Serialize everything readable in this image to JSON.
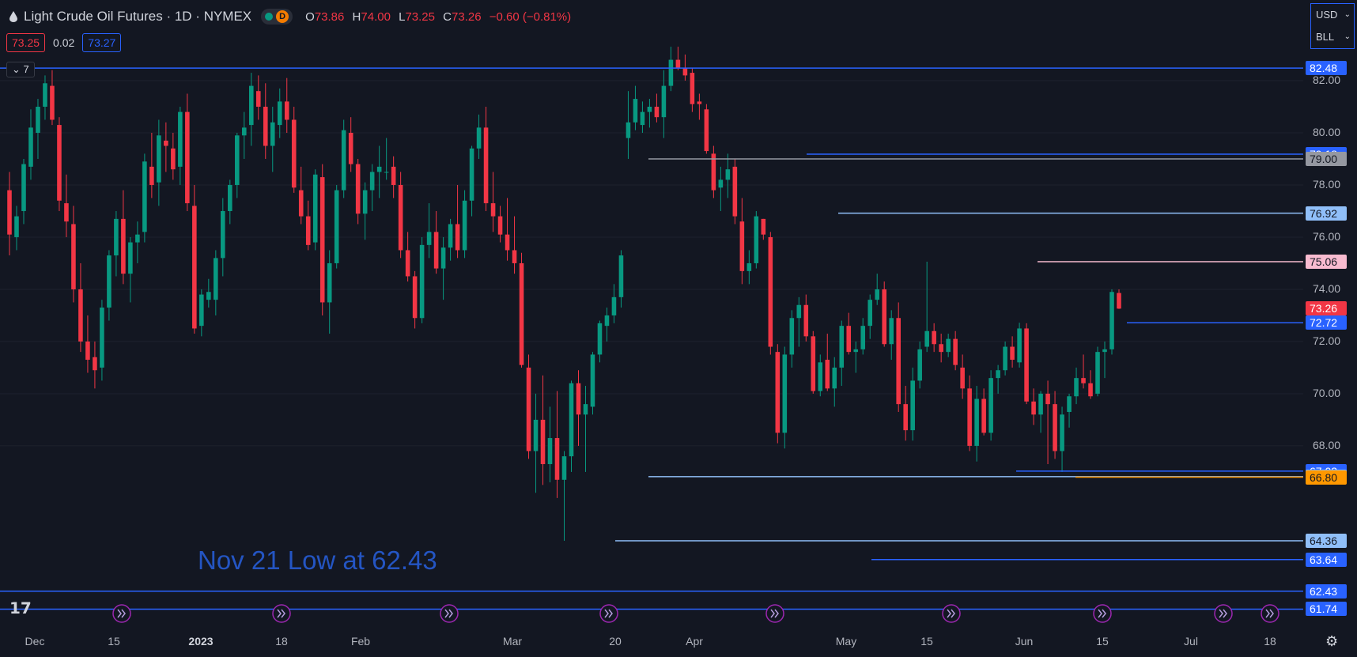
{
  "header": {
    "symbol": "Light Crude Oil Futures · 1D · NYMEX",
    "interval_badge": "D",
    "ohlc": {
      "o_label": "O",
      "o": "73.86",
      "h_label": "H",
      "h": "74.00",
      "l_label": "L",
      "l": "73.25",
      "c_label": "C",
      "c": "73.26",
      "change": "−0.60 (−0.81%)"
    }
  },
  "trade": {
    "bid": "73.25",
    "spread": "0.02",
    "ask": "73.27"
  },
  "indicators_toggle": "7",
  "currency": {
    "currency": "USD",
    "unit": "BLL"
  },
  "annotation": "Nov 21 Low at 62.43",
  "colors": {
    "up": "#089981",
    "down": "#f23645",
    "background": "#131722",
    "grid": "#1e222d",
    "blue": "#2962ff"
  },
  "chart_data": {
    "type": "candlestick",
    "title": "Light Crude Oil Futures · 1D · NYMEX",
    "y_ticks": [
      "82.00",
      "80.00",
      "78.00",
      "76.00",
      "74.00",
      "72.00",
      "70.00",
      "68.00"
    ],
    "x_ticks": [
      {
        "label": "Dec",
        "bold": false
      },
      {
        "label": "15",
        "bold": false
      },
      {
        "label": "2023",
        "bold": true
      },
      {
        "label": "18",
        "bold": false
      },
      {
        "label": "Feb",
        "bold": false
      },
      {
        "label": "Mar",
        "bold": false
      },
      {
        "label": "20",
        "bold": false
      },
      {
        "label": "Apr",
        "bold": false
      },
      {
        "label": "May",
        "bold": false
      },
      {
        "label": "15",
        "bold": false
      },
      {
        "label": "Jun",
        "bold": false
      },
      {
        "label": "15",
        "bold": false
      },
      {
        "label": "Jul",
        "bold": false
      },
      {
        "label": "18",
        "bold": false
      }
    ],
    "ylim": [
      61.3,
      84.0
    ],
    "level_lines": [
      {
        "value": 82.48,
        "label": "82.48",
        "style": "blue"
      },
      {
        "value": 79.18,
        "label": "79.18",
        "style": "blue"
      },
      {
        "value": 79.0,
        "label": "79.00",
        "style": "gray"
      },
      {
        "value": 76.92,
        "label": "76.92",
        "style": "lightblue"
      },
      {
        "value": 75.06,
        "label": "75.06",
        "style": "pink"
      },
      {
        "value": 73.26,
        "label": "73.26",
        "style": "red"
      },
      {
        "value": 72.72,
        "label": "72.72",
        "style": "blue"
      },
      {
        "value": 67.03,
        "label": "67.03",
        "style": "blue"
      },
      {
        "value": 66.82,
        "label": "66.82",
        "style": "lightblue"
      },
      {
        "value": 66.8,
        "label": "66.80",
        "style": "orange"
      },
      {
        "value": 64.36,
        "label": "64.36",
        "style": "lightblue"
      },
      {
        "value": 63.64,
        "label": "63.64",
        "style": "blue"
      },
      {
        "value": 62.43,
        "label": "62.43",
        "style": "blue"
      },
      {
        "value": 61.74,
        "label": "61.74",
        "style": "blue"
      }
    ],
    "candles": [
      [
        77.8,
        78.5,
        75.3,
        76.1
      ],
      [
        76.0,
        77.2,
        75.5,
        76.8
      ],
      [
        77.0,
        79.0,
        76.5,
        78.8
      ],
      [
        78.7,
        80.9,
        78.2,
        80.2
      ],
      [
        80.0,
        81.3,
        79.0,
        81.0
      ],
      [
        81.0,
        82.2,
        80.5,
        81.9
      ],
      [
        81.8,
        82.4,
        80.3,
        80.5
      ],
      [
        80.3,
        80.6,
        77.0,
        77.4
      ],
      [
        77.3,
        78.4,
        76.0,
        76.6
      ],
      [
        76.5,
        77.2,
        73.5,
        74.0
      ],
      [
        74.0,
        75.0,
        71.6,
        72.0
      ],
      [
        72.0,
        73.0,
        70.8,
        71.3
      ],
      [
        71.4,
        72.0,
        70.2,
        70.9
      ],
      [
        71.0,
        73.6,
        70.5,
        73.3
      ],
      [
        73.3,
        75.5,
        72.8,
        75.3
      ],
      [
        75.3,
        77.0,
        74.5,
        76.7
      ],
      [
        76.7,
        77.8,
        74.2,
        74.6
      ],
      [
        74.6,
        76.0,
        73.5,
        75.8
      ],
      [
        75.8,
        76.6,
        75.0,
        76.1
      ],
      [
        76.2,
        79.2,
        75.8,
        78.9
      ],
      [
        78.7,
        80.0,
        77.5,
        78.0
      ],
      [
        78.1,
        80.5,
        77.2,
        79.9
      ],
      [
        79.7,
        80.4,
        78.5,
        79.5
      ],
      [
        79.4,
        80.0,
        78.2,
        78.6
      ],
      [
        78.7,
        81.0,
        78.0,
        80.8
      ],
      [
        80.8,
        81.5,
        77.0,
        77.3
      ],
      [
        77.2,
        78.0,
        72.3,
        72.5
      ],
      [
        72.6,
        74.0,
        72.2,
        73.8
      ],
      [
        73.6,
        74.4,
        73.3,
        73.9
      ],
      [
        73.6,
        75.5,
        73.0,
        75.2
      ],
      [
        75.2,
        77.5,
        74.5,
        77.0
      ],
      [
        77.0,
        78.2,
        76.5,
        78.0
      ],
      [
        78.0,
        80.0,
        77.5,
        79.9
      ],
      [
        79.9,
        80.8,
        79.0,
        80.2
      ],
      [
        80.3,
        82.3,
        79.5,
        81.8
      ],
      [
        81.6,
        82.2,
        80.5,
        81.0
      ],
      [
        81.0,
        81.9,
        79.0,
        79.5
      ],
      [
        79.5,
        81.0,
        78.5,
        80.4
      ],
      [
        80.3,
        81.7,
        79.8,
        81.2
      ],
      [
        81.2,
        82.1,
        80.0,
        80.5
      ],
      [
        80.5,
        81.0,
        77.7,
        77.9
      ],
      [
        77.8,
        78.7,
        76.5,
        76.8
      ],
      [
        76.8,
        77.4,
        75.5,
        75.7
      ],
      [
        75.8,
        78.6,
        75.5,
        78.4
      ],
      [
        78.3,
        78.8,
        73.0,
        73.5
      ],
      [
        73.5,
        75.5,
        72.3,
        75.0
      ],
      [
        75.0,
        78.0,
        74.8,
        77.8
      ],
      [
        77.8,
        80.5,
        77.5,
        80.1
      ],
      [
        80.0,
        80.6,
        78.5,
        78.8
      ],
      [
        78.8,
        79.0,
        76.5,
        76.9
      ],
      [
        76.9,
        78.1,
        75.9,
        77.8
      ],
      [
        77.8,
        78.8,
        77.0,
        78.5
      ],
      [
        78.5,
        79.5,
        77.5,
        78.7
      ],
      [
        78.5,
        79.8,
        78.2,
        78.5
      ],
      [
        78.7,
        79.1,
        77.5,
        78.0
      ],
      [
        78.0,
        78.5,
        75.2,
        75.5
      ],
      [
        75.5,
        76.2,
        74.3,
        74.5
      ],
      [
        74.5,
        74.7,
        72.5,
        72.9
      ],
      [
        72.9,
        76.0,
        72.7,
        75.7
      ],
      [
        75.7,
        77.3,
        75.2,
        76.2
      ],
      [
        76.2,
        77.0,
        74.6,
        74.8
      ],
      [
        74.8,
        76.0,
        73.6,
        75.6
      ],
      [
        75.6,
        76.7,
        75.1,
        76.5
      ],
      [
        76.5,
        78.0,
        75.2,
        75.5
      ],
      [
        75.5,
        77.8,
        75.2,
        77.4
      ],
      [
        77.4,
        79.5,
        76.8,
        79.4
      ],
      [
        79.4,
        80.7,
        79.0,
        80.2
      ],
      [
        80.2,
        81.0,
        77.0,
        77.3
      ],
      [
        77.3,
        78.5,
        76.2,
        76.8
      ],
      [
        76.8,
        77.2,
        75.8,
        76.1
      ],
      [
        76.1,
        77.5,
        75.1,
        75.5
      ],
      [
        75.5,
        76.8,
        74.6,
        75.0
      ],
      [
        75.0,
        75.4,
        71.0,
        71.1
      ],
      [
        71.0,
        71.5,
        67.5,
        67.8
      ],
      [
        67.8,
        70.0,
        66.2,
        69.0
      ],
      [
        69.0,
        70.7,
        66.5,
        67.3
      ],
      [
        67.3,
        69.5,
        66.6,
        68.3
      ],
      [
        68.3,
        70.1,
        66.0,
        66.7
      ],
      [
        66.7,
        67.8,
        64.36,
        67.6
      ],
      [
        67.6,
        70.5,
        67.0,
        70.4
      ],
      [
        70.4,
        70.9,
        68.0,
        69.2
      ],
      [
        69.2,
        70.3,
        67.0,
        69.6
      ],
      [
        69.5,
        71.6,
        69.2,
        71.5
      ],
      [
        71.5,
        72.8,
        71.2,
        72.7
      ],
      [
        72.6,
        73.3,
        72.0,
        73.0
      ],
      [
        73.0,
        74.2,
        72.7,
        73.7
      ],
      [
        73.7,
        75.5,
        73.3,
        75.3
      ],
      [
        79.8,
        81.6,
        79.0,
        80.4
      ],
      [
        80.4,
        81.8,
        80.1,
        81.3
      ],
      [
        80.3,
        81.2,
        80.0,
        80.8
      ],
      [
        80.8,
        81.3,
        80.2,
        81.0
      ],
      [
        81.0,
        81.5,
        80.4,
        80.6
      ],
      [
        80.6,
        82.4,
        79.8,
        81.8
      ],
      [
        81.8,
        83.3,
        81.6,
        82.8
      ],
      [
        82.8,
        83.3,
        82.4,
        82.5
      ],
      [
        82.5,
        83.0,
        82.0,
        82.2
      ],
      [
        82.3,
        82.5,
        80.8,
        81.1
      ],
      [
        81.2,
        81.5,
        80.5,
        81.1
      ],
      [
        80.9,
        81.1,
        79.2,
        79.3
      ],
      [
        79.2,
        79.5,
        77.5,
        77.8
      ],
      [
        77.9,
        78.7,
        77.0,
        78.2
      ],
      [
        78.2,
        79.2,
        77.5,
        78.6
      ],
      [
        78.7,
        79.0,
        76.5,
        76.8
      ],
      [
        76.6,
        77.5,
        74.2,
        74.7
      ],
      [
        74.7,
        75.5,
        74.2,
        75.0
      ],
      [
        75.0,
        77.0,
        74.8,
        76.8
      ],
      [
        76.7,
        76.7,
        75.9,
        76.1
      ],
      [
        76.0,
        76.2,
        71.5,
        71.8
      ],
      [
        71.6,
        71.9,
        68.1,
        68.5
      ],
      [
        68.5,
        71.8,
        67.9,
        71.5
      ],
      [
        71.5,
        73.2,
        71.0,
        72.9
      ],
      [
        72.9,
        73.7,
        71.8,
        73.4
      ],
      [
        73.4,
        73.8,
        72.0,
        72.2
      ],
      [
        72.2,
        72.4,
        70.0,
        70.1
      ],
      [
        70.1,
        71.5,
        69.9,
        71.2
      ],
      [
        71.3,
        72.3,
        70.1,
        70.2
      ],
      [
        70.2,
        71.4,
        69.5,
        71.0
      ],
      [
        71.0,
        72.8,
        70.3,
        72.6
      ],
      [
        72.6,
        73.1,
        71.5,
        71.6
      ],
      [
        71.6,
        72.0,
        70.8,
        71.7
      ],
      [
        71.7,
        72.9,
        71.5,
        72.6
      ],
      [
        72.6,
        73.8,
        72.1,
        73.6
      ],
      [
        73.6,
        74.6,
        73.4,
        74.0
      ],
      [
        74.0,
        74.3,
        71.8,
        71.9
      ],
      [
        71.9,
        73.2,
        71.3,
        72.9
      ],
      [
        72.9,
        73.5,
        69.3,
        69.6
      ],
      [
        69.6,
        70.3,
        68.2,
        68.6
      ],
      [
        68.6,
        71.0,
        68.2,
        70.5
      ],
      [
        70.5,
        72.0,
        70.2,
        71.7
      ],
      [
        71.8,
        75.06,
        71.6,
        72.4
      ],
      [
        72.4,
        72.7,
        71.6,
        71.9
      ],
      [
        71.9,
        72.3,
        71.2,
        71.6
      ],
      [
        71.6,
        72.3,
        71.4,
        72.1
      ],
      [
        72.1,
        72.4,
        70.9,
        71.1
      ],
      [
        71.0,
        71.5,
        69.8,
        70.2
      ],
      [
        70.2,
        70.7,
        67.8,
        68.0
      ],
      [
        68.0,
        70.3,
        67.4,
        69.8
      ],
      [
        69.8,
        70.2,
        68.4,
        68.5
      ],
      [
        68.5,
        70.9,
        68.2,
        70.6
      ],
      [
        70.6,
        71.1,
        70.0,
        70.9
      ],
      [
        70.9,
        72.0,
        70.7,
        71.8
      ],
      [
        71.8,
        72.2,
        71.0,
        71.3
      ],
      [
        71.2,
        72.72,
        71.0,
        72.5
      ],
      [
        72.5,
        72.7,
        69.6,
        69.7
      ],
      [
        69.7,
        70.2,
        68.8,
        69.2
      ],
      [
        69.2,
        70.1,
        68.5,
        70.0
      ],
      [
        70.0,
        70.5,
        67.3,
        69.6
      ],
      [
        69.6,
        70.1,
        67.5,
        67.8
      ],
      [
        67.8,
        69.5,
        67.0,
        69.2
      ],
      [
        69.3,
        70.0,
        68.7,
        69.9
      ],
      [
        69.9,
        71.0,
        69.6,
        70.6
      ],
      [
        70.6,
        71.5,
        70.2,
        70.4
      ],
      [
        70.4,
        70.9,
        69.8,
        69.9
      ],
      [
        70.0,
        71.8,
        69.9,
        71.6
      ],
      [
        71.6,
        72.0,
        70.6,
        71.7
      ],
      [
        71.7,
        74.0,
        71.5,
        73.9
      ],
      [
        73.86,
        74.0,
        73.25,
        73.26
      ]
    ]
  }
}
